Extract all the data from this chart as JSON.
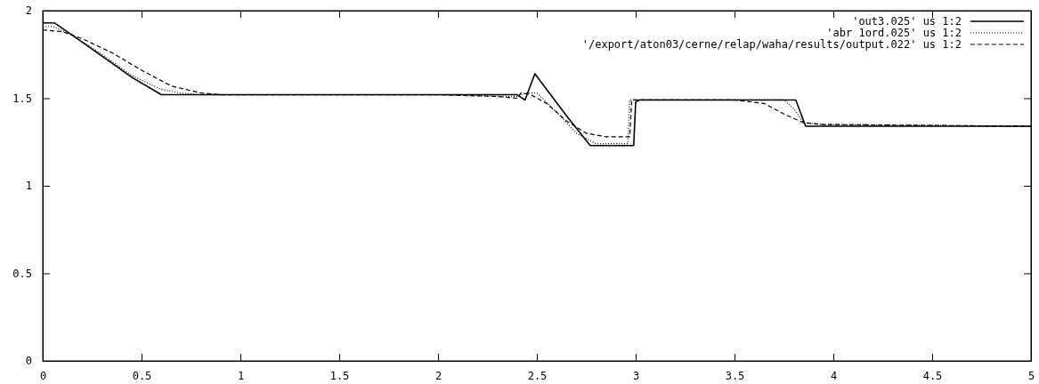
{
  "chart_data": {
    "type": "line",
    "xlim": [
      0,
      5
    ],
    "ylim": [
      0,
      2
    ],
    "xticks": [
      0,
      0.5,
      1,
      1.5,
      2,
      2.5,
      3,
      3.5,
      4,
      4.5,
      5
    ],
    "yticks": [
      0,
      0.5,
      1,
      1.5,
      2
    ],
    "grid": false,
    "legend": "top right",
    "series": [
      {
        "name": "'out3.025' us 1:2",
        "color": "#000000",
        "line_style": "solid",
        "x": [
          0,
          0.06,
          0.15,
          0.3,
          0.45,
          0.6,
          0.62,
          1,
          2,
          2.4,
          2.44,
          2.49,
          2.55,
          2.65,
          2.77,
          2.99,
          3.0,
          3.02,
          3.5,
          3.81,
          3.86,
          4,
          5
        ],
        "values": [
          1.93,
          1.93,
          1.86,
          1.74,
          1.62,
          1.52,
          1.52,
          1.52,
          1.52,
          1.52,
          1.49,
          1.64,
          1.55,
          1.4,
          1.23,
          1.23,
          1.48,
          1.49,
          1.49,
          1.49,
          1.34,
          1.34,
          1.34
        ]
      },
      {
        "name": "'abr 1ord.025' us 1:2",
        "color": "#000000",
        "line_style": "dotted",
        "x": [
          0,
          0.05,
          0.15,
          0.3,
          0.45,
          0.6,
          0.7,
          0.8,
          1,
          2,
          2.4,
          2.44,
          2.5,
          2.6,
          2.7,
          2.8,
          2.96,
          2.97,
          3.0,
          3.5,
          3.75,
          3.8,
          3.85,
          3.95,
          5
        ],
        "values": [
          1.91,
          1.91,
          1.86,
          1.75,
          1.63,
          1.55,
          1.53,
          1.52,
          1.52,
          1.52,
          1.51,
          1.53,
          1.53,
          1.42,
          1.3,
          1.24,
          1.24,
          1.49,
          1.49,
          1.49,
          1.49,
          1.44,
          1.36,
          1.35,
          1.34
        ]
      },
      {
        "name": "'/export/aton03/cerne/relap/waha/results/output.022' us 1:2",
        "color": "#000000",
        "line_style": "dashed",
        "x": [
          0,
          0.1,
          0.2,
          0.35,
          0.5,
          0.65,
          0.8,
          0.9,
          1,
          2,
          2.3,
          2.4,
          2.42,
          2.47,
          2.55,
          2.65,
          2.75,
          2.85,
          2.97,
          2.98,
          3.0,
          3.5,
          3.65,
          3.75,
          3.85,
          3.95,
          5
        ],
        "values": [
          1.89,
          1.88,
          1.84,
          1.76,
          1.66,
          1.57,
          1.53,
          1.52,
          1.52,
          1.52,
          1.51,
          1.5,
          1.53,
          1.52,
          1.47,
          1.37,
          1.3,
          1.28,
          1.28,
          1.49,
          1.49,
          1.49,
          1.47,
          1.41,
          1.36,
          1.35,
          1.34
        ]
      }
    ]
  }
}
